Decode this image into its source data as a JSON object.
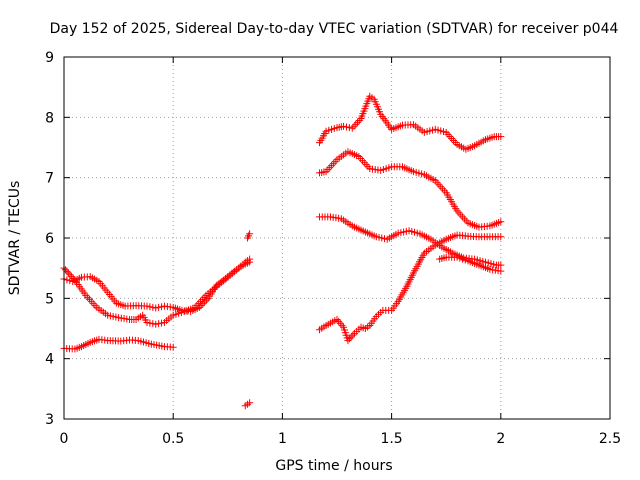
{
  "chart_data": {
    "type": "scatter",
    "title": "Day 152 of 2025, Sidereal Day-to-day VTEC variation (SDTVAR) for receiver p044",
    "xlabel": "GPS time / hours",
    "ylabel": "SDTVAR / TECUs",
    "xlim": [
      0,
      2.5
    ],
    "ylim": [
      3,
      9
    ],
    "xticks": [
      0,
      0.5,
      1,
      1.5,
      2,
      2.5
    ],
    "xtick_labels": [
      "0",
      "0.5",
      "1",
      "1.5",
      "2",
      "2.5"
    ],
    "yticks": [
      3,
      4,
      5,
      6,
      7,
      8,
      9
    ],
    "ytick_labels": [
      "3",
      "4",
      "5",
      "6",
      "7",
      "8",
      "9"
    ],
    "grid": true,
    "marker": "+",
    "marker_color": "#ff0000",
    "series": [
      {
        "name": "a",
        "points": [
          [
            0,
            4.17
          ],
          [
            0.05,
            4.16
          ],
          [
            0.08,
            4.2
          ],
          [
            0.12,
            4.27
          ],
          [
            0.16,
            4.32
          ],
          [
            0.2,
            4.3
          ],
          [
            0.26,
            4.29
          ],
          [
            0.3,
            4.31
          ],
          [
            0.34,
            4.3
          ],
          [
            0.4,
            4.24
          ],
          [
            0.46,
            4.2
          ],
          [
            0.5,
            4.19
          ]
        ]
      },
      {
        "name": "b",
        "points": [
          [
            0,
            5.5
          ],
          [
            0.02,
            5.42
          ],
          [
            0.05,
            5.3
          ],
          [
            0.1,
            5.05
          ],
          [
            0.15,
            4.85
          ],
          [
            0.2,
            4.72
          ],
          [
            0.25,
            4.68
          ],
          [
            0.3,
            4.65
          ],
          [
            0.33,
            4.65
          ],
          [
            0.36,
            4.72
          ],
          [
            0.38,
            4.6
          ],
          [
            0.42,
            4.57
          ],
          [
            0.46,
            4.6
          ],
          [
            0.5,
            4.72
          ],
          [
            0.55,
            4.78
          ],
          [
            0.6,
            4.85
          ],
          [
            0.65,
            5.05
          ],
          [
            0.7,
            5.2
          ],
          [
            0.75,
            5.35
          ],
          [
            0.8,
            5.5
          ],
          [
            0.83,
            5.6
          ],
          [
            0.85,
            5.65
          ]
        ]
      },
      {
        "name": "c",
        "points": [
          [
            0,
            5.32
          ],
          [
            0.04,
            5.28
          ],
          [
            0.08,
            5.35
          ],
          [
            0.12,
            5.36
          ],
          [
            0.16,
            5.28
          ],
          [
            0.2,
            5.1
          ],
          [
            0.24,
            4.92
          ],
          [
            0.28,
            4.87
          ],
          [
            0.33,
            4.88
          ],
          [
            0.38,
            4.87
          ],
          [
            0.42,
            4.84
          ],
          [
            0.46,
            4.87
          ],
          [
            0.5,
            4.85
          ],
          [
            0.54,
            4.8
          ],
          [
            0.58,
            4.78
          ],
          [
            0.62,
            4.85
          ],
          [
            0.66,
            5.0
          ],
          [
            0.7,
            5.22
          ],
          [
            0.74,
            5.33
          ],
          [
            0.78,
            5.45
          ],
          [
            0.82,
            5.55
          ],
          [
            0.85,
            5.6
          ]
        ]
      },
      {
        "name": "d",
        "points": [
          [
            0.83,
            3.22
          ],
          [
            0.85,
            3.27
          ]
        ]
      },
      {
        "name": "e",
        "points": [
          [
            0.84,
            6.0
          ],
          [
            0.85,
            6.07
          ]
        ]
      },
      {
        "name": "f",
        "points": [
          [
            1.17,
            7.58
          ],
          [
            1.2,
            7.77
          ],
          [
            1.25,
            7.83
          ],
          [
            1.28,
            7.85
          ],
          [
            1.32,
            7.82
          ],
          [
            1.36,
            7.98
          ],
          [
            1.4,
            8.35
          ],
          [
            1.42,
            8.3
          ],
          [
            1.45,
            8.05
          ],
          [
            1.5,
            7.8
          ],
          [
            1.55,
            7.87
          ],
          [
            1.6,
            7.88
          ],
          [
            1.65,
            7.75
          ],
          [
            1.7,
            7.8
          ],
          [
            1.75,
            7.75
          ],
          [
            1.8,
            7.55
          ],
          [
            1.84,
            7.47
          ],
          [
            1.88,
            7.53
          ],
          [
            1.93,
            7.63
          ],
          [
            1.97,
            7.68
          ],
          [
            2.0,
            7.68
          ]
        ]
      },
      {
        "name": "g",
        "points": [
          [
            1.17,
            7.08
          ],
          [
            1.2,
            7.1
          ],
          [
            1.25,
            7.3
          ],
          [
            1.3,
            7.43
          ],
          [
            1.35,
            7.35
          ],
          [
            1.4,
            7.15
          ],
          [
            1.45,
            7.12
          ],
          [
            1.5,
            7.18
          ],
          [
            1.55,
            7.18
          ],
          [
            1.6,
            7.1
          ],
          [
            1.65,
            7.05
          ],
          [
            1.7,
            6.95
          ],
          [
            1.75,
            6.75
          ],
          [
            1.8,
            6.45
          ],
          [
            1.85,
            6.25
          ],
          [
            1.9,
            6.18
          ],
          [
            1.95,
            6.2
          ],
          [
            2.0,
            6.27
          ]
        ]
      },
      {
        "name": "h",
        "points": [
          [
            1.17,
            6.35
          ],
          [
            1.22,
            6.35
          ],
          [
            1.27,
            6.32
          ],
          [
            1.32,
            6.2
          ],
          [
            1.38,
            6.1
          ],
          [
            1.43,
            6.02
          ],
          [
            1.48,
            5.98
          ],
          [
            1.53,
            6.08
          ],
          [
            1.58,
            6.12
          ],
          [
            1.63,
            6.07
          ],
          [
            1.68,
            5.98
          ],
          [
            1.73,
            5.85
          ],
          [
            1.78,
            5.75
          ],
          [
            1.83,
            5.67
          ],
          [
            1.88,
            5.65
          ],
          [
            1.93,
            5.6
          ],
          [
            1.98,
            5.55
          ],
          [
            2.0,
            5.55
          ]
        ]
      },
      {
        "name": "i",
        "points": [
          [
            1.17,
            4.48
          ],
          [
            1.2,
            4.55
          ],
          [
            1.25,
            4.65
          ],
          [
            1.28,
            4.52
          ],
          [
            1.3,
            4.3
          ],
          [
            1.33,
            4.42
          ],
          [
            1.36,
            4.52
          ],
          [
            1.38,
            4.5
          ],
          [
            1.4,
            4.55
          ],
          [
            1.43,
            4.7
          ],
          [
            1.46,
            4.8
          ],
          [
            1.5,
            4.8
          ],
          [
            1.53,
            4.95
          ],
          [
            1.57,
            5.2
          ],
          [
            1.6,
            5.42
          ],
          [
            1.65,
            5.75
          ],
          [
            1.7,
            5.88
          ],
          [
            1.75,
            5.98
          ],
          [
            1.8,
            6.05
          ],
          [
            1.85,
            6.03
          ],
          [
            1.9,
            6.02
          ],
          [
            1.95,
            6.02
          ],
          [
            2.0,
            6.02
          ]
        ]
      },
      {
        "name": "j",
        "points": [
          [
            1.72,
            5.65
          ],
          [
            1.75,
            5.68
          ],
          [
            1.8,
            5.68
          ],
          [
            1.85,
            5.62
          ],
          [
            1.9,
            5.55
          ],
          [
            1.95,
            5.48
          ],
          [
            2.0,
            5.45
          ]
        ]
      }
    ]
  }
}
